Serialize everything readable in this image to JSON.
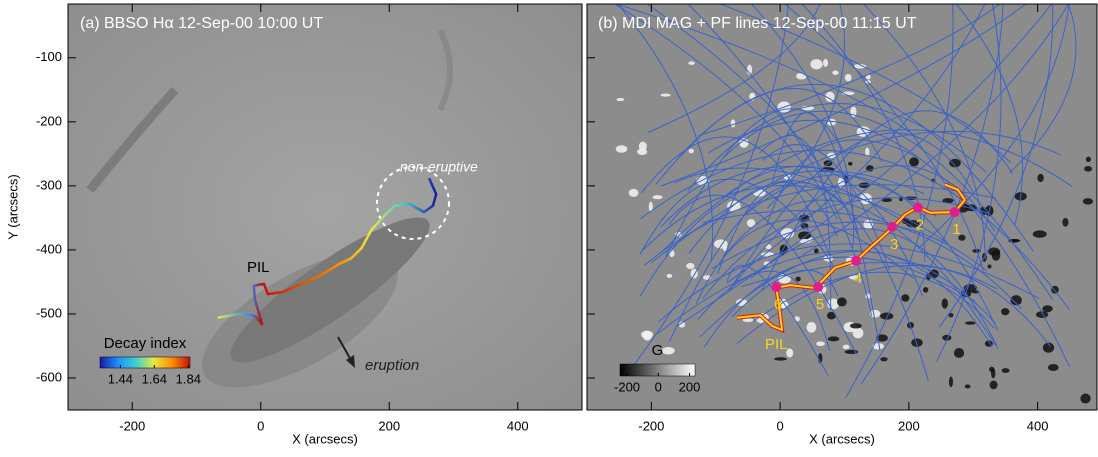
{
  "chart_data": [
    {
      "type": "image",
      "title": "(a) BBSO Hα 12-Sep-00 10:00 UT",
      "xlabel": "X (arcsecs)",
      "ylabel": "Y (arcsecs)",
      "xlim": [
        -300,
        500
      ],
      "ylim": [
        -650,
        -16
      ],
      "xticks": [
        -200,
        0,
        200,
        400
      ],
      "yticks": [
        -600,
        -500,
        -400,
        -300,
        -200,
        -100
      ],
      "ytick_labels": true,
      "series": [
        {
          "name": "PIL",
          "x": [
            -67,
            -33,
            -9,
            2,
            -9,
            -11,
            5,
            11,
            33,
            60,
            91,
            122,
            141,
            157,
            172,
            192,
            208,
            231,
            254,
            268,
            273,
            262
          ],
          "y": [
            -506,
            -500,
            -503,
            -516,
            -478,
            -456,
            -453,
            -469,
            -466,
            -455,
            -441,
            -422,
            -413,
            -397,
            -369,
            -347,
            -331,
            -328,
            -341,
            -331,
            -313,
            -288
          ],
          "color": "gradient"
        }
      ],
      "annotations": [
        "non-eruptive",
        "eruption"
      ],
      "colorbar": {
        "label": "Decay index",
        "lim": [
          1.32,
          1.85
        ],
        "ticks": [
          1.44,
          1.64,
          1.84
        ],
        "colors": [
          "#1a1aa0",
          "#1e90ff",
          "#3fd0d0",
          "#e8e840",
          "#ff8c00",
          "#c01010"
        ]
      }
    },
    {
      "type": "image",
      "title": "(b) MDI MAG + PF lines 12-Sep-00 11:15 UT",
      "xlabel": "X (arcsecs)",
      "xlim": [
        -300,
        500
      ],
      "ylim": [
        -650,
        -16
      ],
      "xticks": [
        -200,
        0,
        200,
        400
      ],
      "yticks": [
        -600,
        -500,
        -400,
        -300,
        -200,
        -100
      ],
      "ytick_labels": false,
      "series": [
        {
          "name": "PIL",
          "x": [
            -67,
            -31,
            -12,
            3,
            -3,
            -6,
            16,
            50,
            59,
            85,
            118,
            136,
            174,
            194,
            214,
            233,
            271,
            287,
            276,
            256
          ],
          "y": [
            -506,
            -502,
            -519,
            -525,
            -478,
            -459,
            -455,
            -459,
            -455,
            -428,
            -417,
            -400,
            -366,
            -345,
            -333,
            -342,
            -341,
            -322,
            -306,
            -298
          ],
          "color": "#ffd21a"
        },
        {
          "labels": [
            "1",
            "2",
            "3",
            "4",
            "5",
            "6"
          ],
          "x": [
            271,
            214,
            174,
            118,
            59,
            -6
          ],
          "y": [
            -341,
            -334,
            -364,
            -417,
            -458,
            -458
          ],
          "color": "#e0208a"
        }
      ],
      "colorbar": {
        "label": "G",
        "lim": [
          -245,
          235
        ],
        "ticks": [
          -200,
          0,
          200
        ],
        "colors": [
          "#000000",
          "#ffffff"
        ]
      }
    }
  ]
}
